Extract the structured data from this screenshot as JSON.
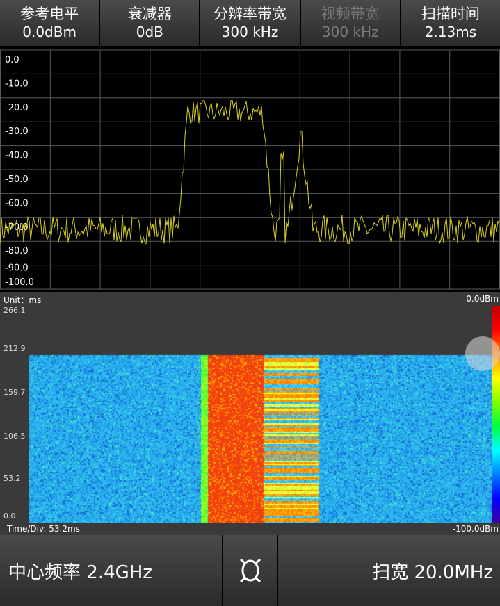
{
  "params": [
    {
      "label": "参考电平",
      "value": "0.0dBm",
      "enabled": true
    },
    {
      "label": "衰减器",
      "value": "0dB",
      "enabled": true
    },
    {
      "label": "分辨率带宽",
      "value": "300 kHz",
      "enabled": true
    },
    {
      "label": "视频带宽",
      "value": "300 kHz",
      "enabled": false
    },
    {
      "label": "扫描时间",
      "value": "2.13ms",
      "enabled": true
    }
  ],
  "spectrum": {
    "y_labels": [
      "0.0",
      "-10.0",
      "-20.0",
      "-30.0",
      "-40.0",
      "-50.0",
      "-60.0",
      "-70.0",
      "-80.0",
      "-90.0",
      "-100.0"
    ],
    "trace_color": "#d8d020",
    "grid_color": "#5a5a5a",
    "ylim": [
      -100,
      0
    ]
  },
  "midbar": {
    "unit": "Unit：ms",
    "ref": "0.0dBm"
  },
  "waterfall": {
    "y_labels": [
      "266.1",
      "212.9",
      "159.7",
      "106.5",
      "53.2",
      "0.0"
    ]
  },
  "timebar": {
    "time_div": "Time/Div: 53.2ms",
    "min": "-100.0dBm"
  },
  "bottom": {
    "center_label": "中心频率 2.4GHz",
    "span_label": "扫宽 20.0MHz",
    "icon": "antenna-switch-icon"
  }
}
